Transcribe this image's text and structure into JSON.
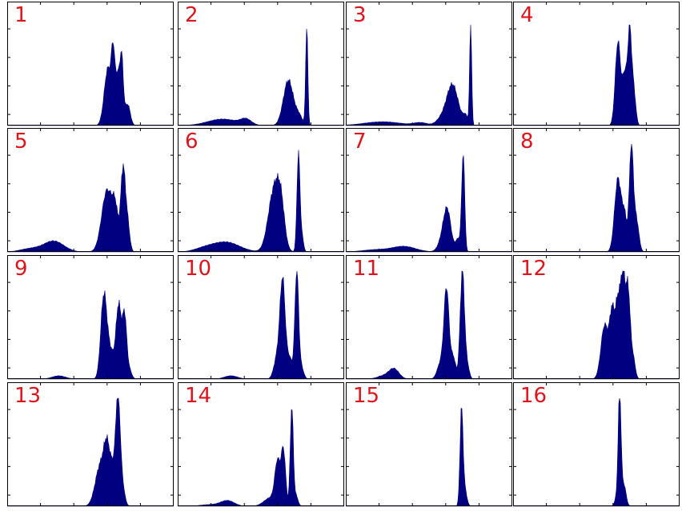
{
  "colors": {
    "fill": "#000080",
    "frame": "#000000",
    "label": "#e0151b",
    "background": "#ffffff"
  },
  "chart_data": {
    "type": "area",
    "layout": "4x4 grid of small multiples",
    "xlabel": "",
    "ylabel": "",
    "xlim": [
      0,
      100
    ],
    "ylim": [
      0,
      1
    ],
    "grid": false,
    "legend": "none",
    "panels": [
      {
        "label": "1",
        "peaks": [
          {
            "mu": 60.5,
            "sd": 2.2,
            "h": 0.52
          },
          {
            "mu": 63.5,
            "sd": 0.9,
            "h": 0.38
          },
          {
            "mu": 66.5,
            "sd": 2.3,
            "h": 0.48
          },
          {
            "mu": 68.8,
            "sd": 0.9,
            "h": 0.38
          },
          {
            "mu": 72.5,
            "sd": 1.5,
            "h": 0.18
          }
        ]
      },
      {
        "label": "2",
        "peaks": [
          {
            "mu": 27,
            "sd": 9,
            "h": 0.06
          },
          {
            "mu": 41,
            "sd": 3.2,
            "h": 0.05
          },
          {
            "mu": 66.5,
            "sd": 3,
            "h": 0.42
          },
          {
            "mu": 73,
            "sd": 2,
            "h": 0.08
          },
          {
            "mu": 77.5,
            "sd": 0.65,
            "h": 0.92
          }
        ]
      },
      {
        "label": "3",
        "peaks": [
          {
            "mu": 22,
            "sd": 11,
            "h": 0.035
          },
          {
            "mu": 45,
            "sd": 4,
            "h": 0.025
          },
          {
            "mu": 64,
            "sd": 3.5,
            "h": 0.38
          },
          {
            "mu": 57,
            "sd": 3,
            "h": 0.05
          },
          {
            "mu": 72,
            "sd": 1.5,
            "h": 0.08
          },
          {
            "mu": 75,
            "sd": 0.6,
            "h": 0.95
          }
        ]
      },
      {
        "label": "4",
        "peaks": [
          {
            "mu": 63,
            "sd": 1.6,
            "h": 0.78
          },
          {
            "mu": 67,
            "sd": 1.3,
            "h": 0.45
          },
          {
            "mu": 70,
            "sd": 1.2,
            "h": 0.86
          },
          {
            "mu": 72.5,
            "sd": 1.2,
            "h": 0.3
          }
        ]
      },
      {
        "label": "5",
        "peaks": [
          {
            "mu": 28,
            "sd": 6,
            "h": 0.1
          },
          {
            "mu": 14,
            "sd": 6,
            "h": 0.03
          },
          {
            "mu": 60,
            "sd": 3.2,
            "h": 0.57
          },
          {
            "mu": 65,
            "sd": 1.8,
            "h": 0.32
          },
          {
            "mu": 69.5,
            "sd": 1.3,
            "h": 0.72
          },
          {
            "mu": 72,
            "sd": 1.4,
            "h": 0.3
          }
        ]
      },
      {
        "label": "6",
        "peaks": [
          {
            "mu": 29,
            "sd": 8,
            "h": 0.09
          },
          {
            "mu": 16,
            "sd": 6,
            "h": 0.03
          },
          {
            "mu": 58,
            "sd": 3.5,
            "h": 0.58
          },
          {
            "mu": 62,
            "sd": 2.2,
            "h": 0.3
          },
          {
            "mu": 72.5,
            "sd": 0.9,
            "h": 0.9
          },
          {
            "mu": 74.5,
            "sd": 1,
            "h": 0.15
          }
        ]
      },
      {
        "label": "7",
        "peaks": [
          {
            "mu": 35,
            "sd": 7,
            "h": 0.05
          },
          {
            "mu": 18,
            "sd": 8,
            "h": 0.02
          },
          {
            "mu": 61,
            "sd": 2.2,
            "h": 0.36
          },
          {
            "mu": 58,
            "sd": 2.5,
            "h": 0.1
          },
          {
            "mu": 70.5,
            "sd": 0.9,
            "h": 0.9
          },
          {
            "mu": 67.5,
            "sd": 1.5,
            "h": 0.12
          }
        ]
      },
      {
        "label": "8",
        "peaks": [
          {
            "mu": 63,
            "sd": 2,
            "h": 0.68
          },
          {
            "mu": 67,
            "sd": 1.4,
            "h": 0.3
          },
          {
            "mu": 71,
            "sd": 1.2,
            "h": 0.98
          },
          {
            "mu": 74,
            "sd": 1.5,
            "h": 0.3
          }
        ]
      },
      {
        "label": "9",
        "peaks": [
          {
            "mu": 31,
            "sd": 4,
            "h": 0.03
          },
          {
            "mu": 58,
            "sd": 1.8,
            "h": 0.75
          },
          {
            "mu": 62,
            "sd": 2.2,
            "h": 0.25
          },
          {
            "mu": 67,
            "sd": 1.6,
            "h": 0.68
          },
          {
            "mu": 70.5,
            "sd": 1.2,
            "h": 0.55
          },
          {
            "mu": 73,
            "sd": 1.5,
            "h": 0.1
          }
        ]
      },
      {
        "label": "10",
        "peaks": [
          {
            "mu": 32,
            "sd": 4,
            "h": 0.03
          },
          {
            "mu": 63,
            "sd": 1.5,
            "h": 0.85
          },
          {
            "mu": 60,
            "sd": 2,
            "h": 0.22
          },
          {
            "mu": 67,
            "sd": 2,
            "h": 0.2
          },
          {
            "mu": 71.5,
            "sd": 1.1,
            "h": 0.98
          },
          {
            "mu": 74,
            "sd": 1.5,
            "h": 0.12
          }
        ]
      },
      {
        "label": "11",
        "peaks": [
          {
            "mu": 29,
            "sd": 3,
            "h": 0.09
          },
          {
            "mu": 23,
            "sd": 4,
            "h": 0.03
          },
          {
            "mu": 60.5,
            "sd": 1.5,
            "h": 0.82
          },
          {
            "mu": 57,
            "sd": 2,
            "h": 0.15
          },
          {
            "mu": 64.5,
            "sd": 1.5,
            "h": 0.2
          },
          {
            "mu": 70,
            "sd": 1.3,
            "h": 1.0
          },
          {
            "mu": 73,
            "sd": 1.2,
            "h": 0.12
          }
        ]
      },
      {
        "label": "12",
        "peaks": [
          {
            "mu": 55,
            "sd": 2.2,
            "h": 0.5
          },
          {
            "mu": 59.5,
            "sd": 1.5,
            "h": 0.58
          },
          {
            "mu": 63,
            "sd": 1.5,
            "h": 0.7
          },
          {
            "mu": 66,
            "sd": 1.3,
            "h": 0.9
          },
          {
            "mu": 69,
            "sd": 1.3,
            "h": 0.82
          },
          {
            "mu": 72,
            "sd": 1.3,
            "h": 0.2
          }
        ]
      },
      {
        "label": "13",
        "peaks": [
          {
            "mu": 56,
            "sd": 3,
            "h": 0.38
          },
          {
            "mu": 60,
            "sd": 1.8,
            "h": 0.45
          },
          {
            "mu": 63.5,
            "sd": 1.6,
            "h": 0.3
          },
          {
            "mu": 66.5,
            "sd": 1.3,
            "h": 0.98
          },
          {
            "mu": 69,
            "sd": 1.5,
            "h": 0.2
          }
        ]
      },
      {
        "label": "14",
        "peaks": [
          {
            "mu": 30,
            "sd": 4,
            "h": 0.05
          },
          {
            "mu": 20,
            "sd": 6,
            "h": 0.015
          },
          {
            "mu": 56,
            "sd": 4,
            "h": 0.08
          },
          {
            "mu": 60,
            "sd": 1.6,
            "h": 0.38
          },
          {
            "mu": 63.5,
            "sd": 1.3,
            "h": 0.5
          },
          {
            "mu": 68.5,
            "sd": 0.9,
            "h": 0.92
          },
          {
            "mu": 71,
            "sd": 1.2,
            "h": 0.1
          }
        ]
      },
      {
        "label": "15",
        "peaks": [
          {
            "mu": 69.5,
            "sd": 0.9,
            "h": 0.88
          },
          {
            "mu": 71.5,
            "sd": 1.2,
            "h": 0.15
          }
        ]
      },
      {
        "label": "16",
        "peaks": [
          {
            "mu": 64,
            "sd": 0.85,
            "h": 1.0
          },
          {
            "mu": 66.5,
            "sd": 1.3,
            "h": 0.2
          },
          {
            "mu": 62.5,
            "sd": 1.2,
            "h": 0.1
          }
        ]
      }
    ]
  }
}
